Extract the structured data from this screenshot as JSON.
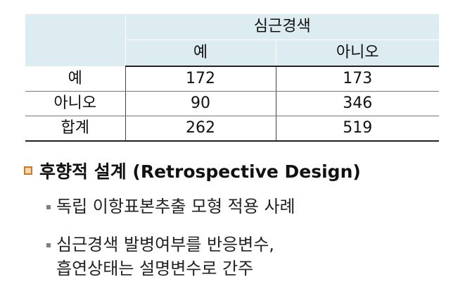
{
  "table": {
    "group_header": "심근경색",
    "col_headers": [
      "예",
      "아니오"
    ],
    "rows": [
      {
        "label": "예",
        "values": [
          "172",
          "173"
        ]
      },
      {
        "label": "아니오",
        "values": [
          "90",
          "346"
        ]
      },
      {
        "label": "합계",
        "values": [
          "262",
          "519"
        ]
      }
    ]
  },
  "section": {
    "heading": "후향적 설계 (Retrospective Design)",
    "bullets": [
      {
        "lines": [
          "독립 이항표본추출 모형 적용 사례"
        ]
      },
      {
        "lines": [
          "심근경색 발병여부를 반응변수,",
          "흡연상태는 설명변수로 간주"
        ]
      }
    ]
  },
  "colors": {
    "header_bg": "#dcecf1",
    "bullet_fill": "#f4d7a6",
    "bullet_border": "#c7792f",
    "sub_bullet": "#808080"
  }
}
